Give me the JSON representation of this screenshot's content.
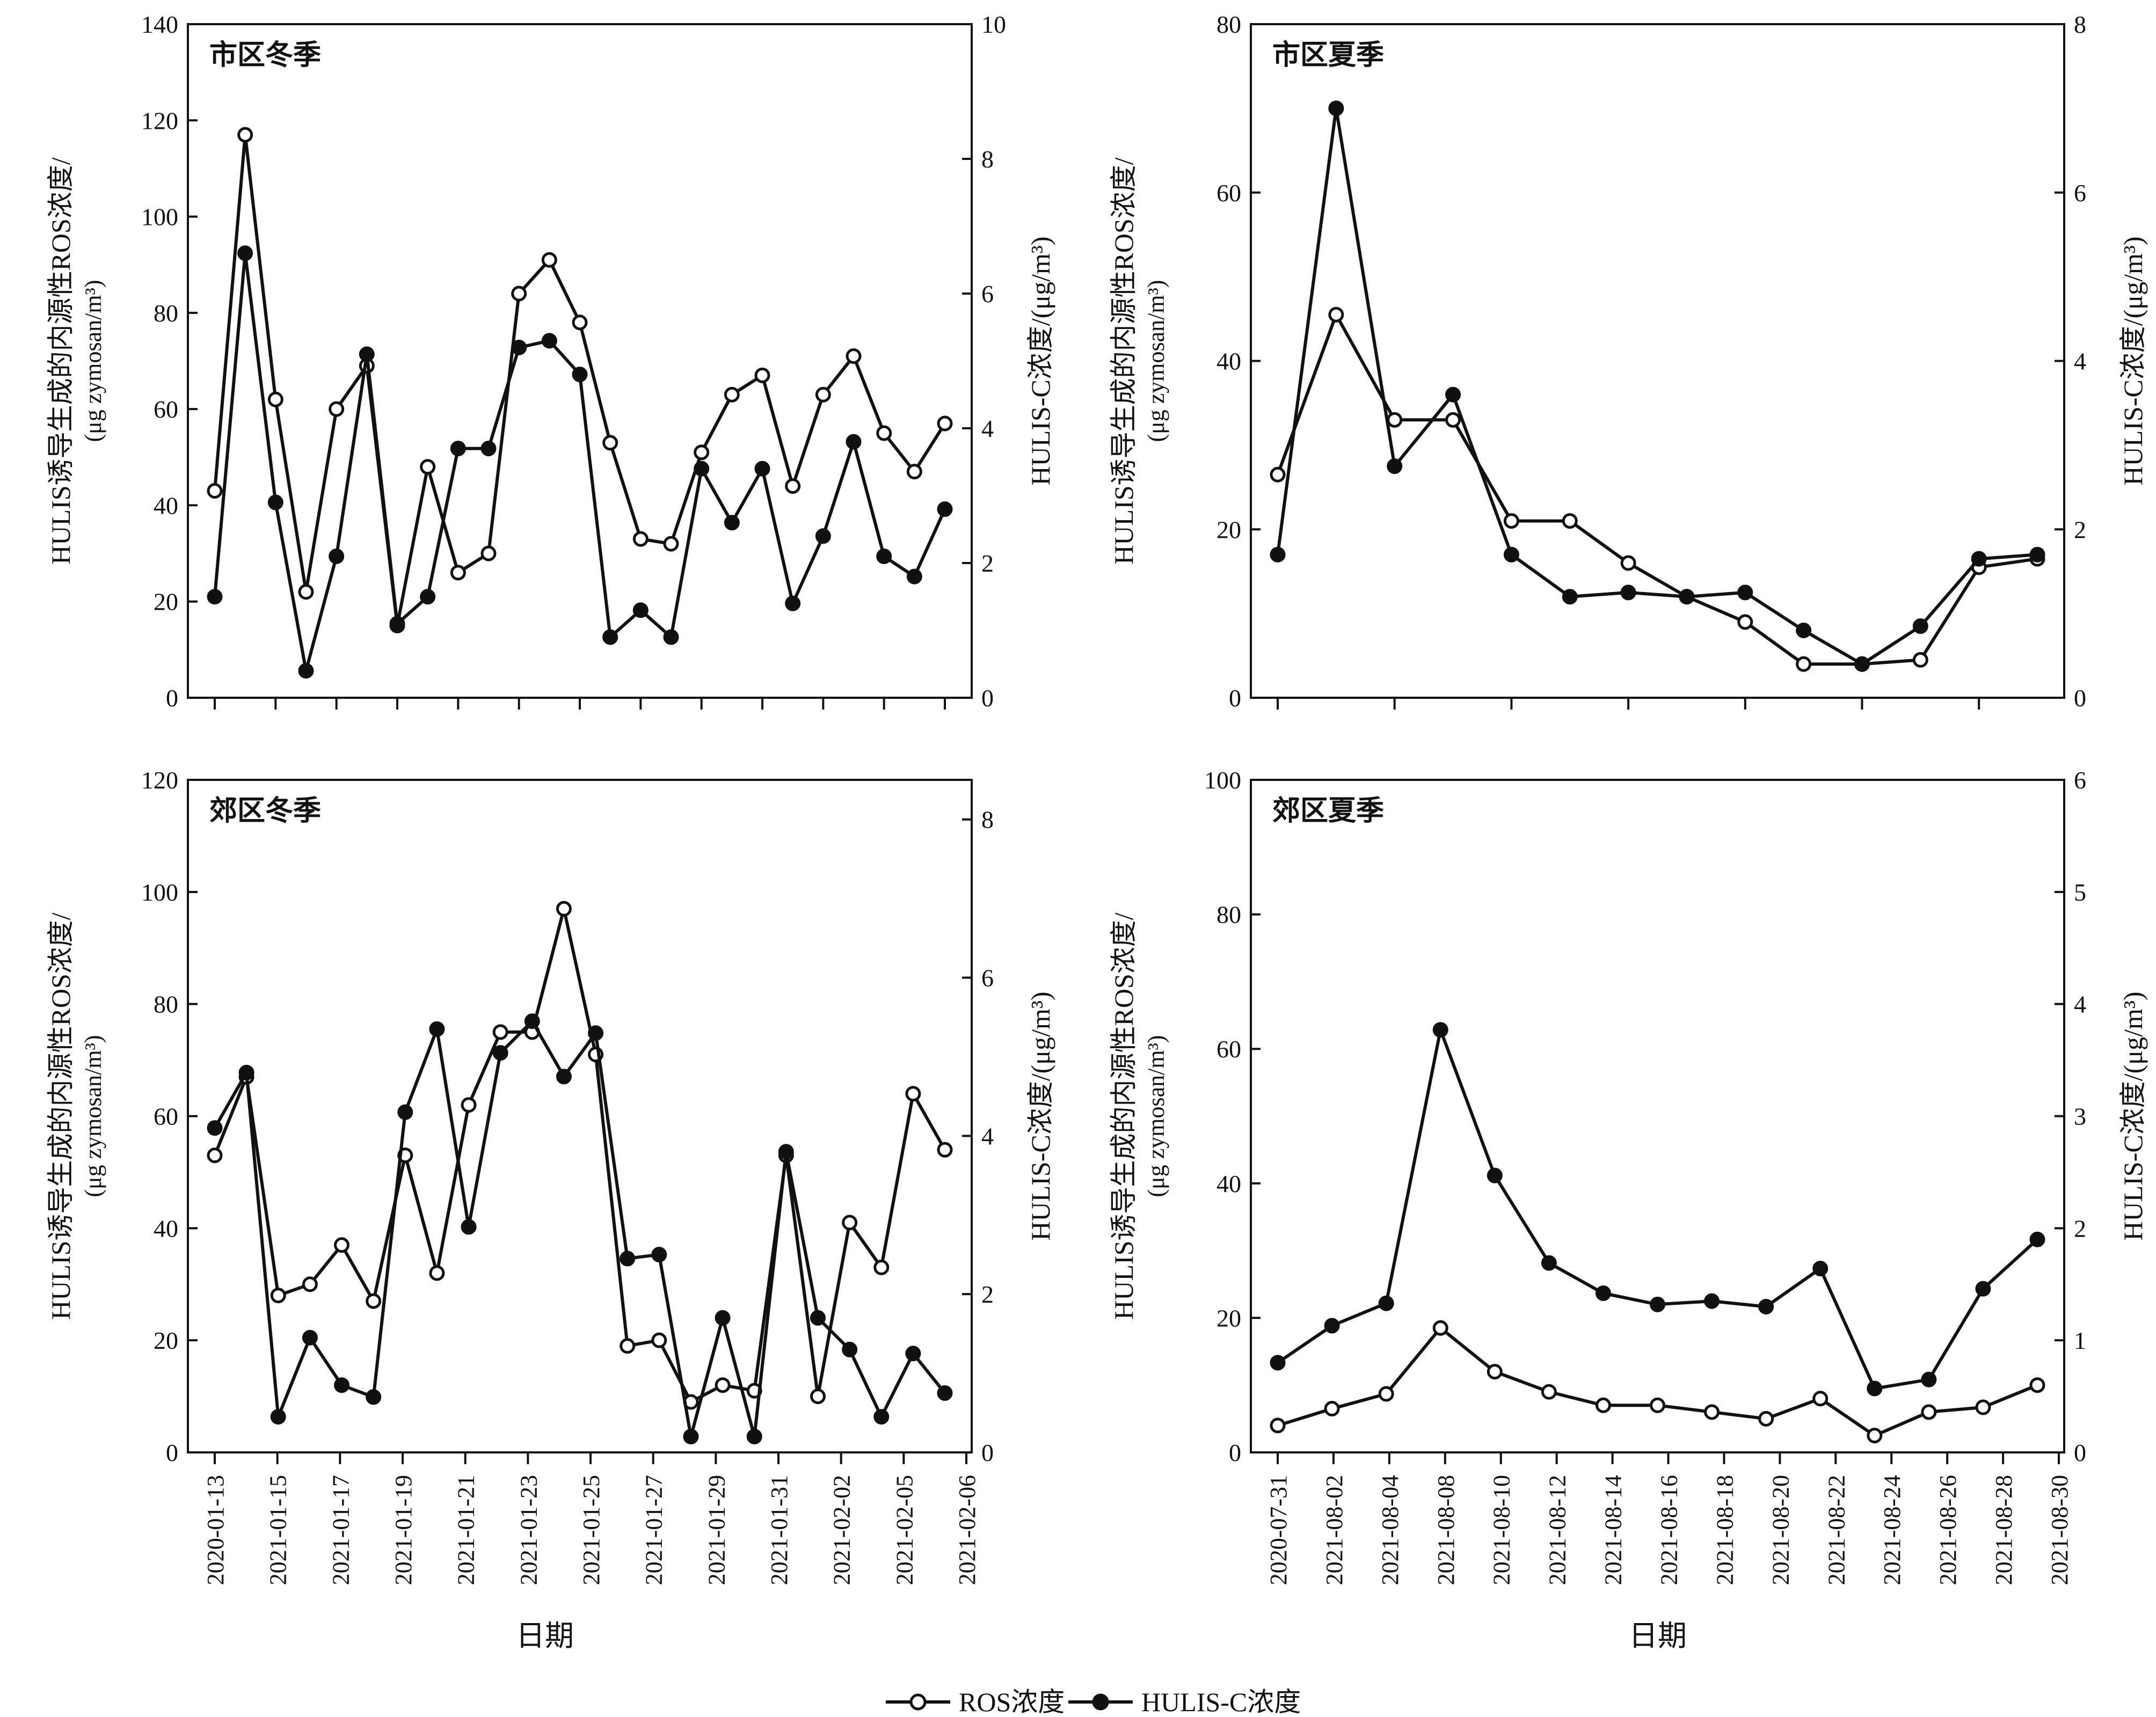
{
  "figure": {
    "x_axis_title": "日期",
    "legend": {
      "ros_label": "ROS浓度",
      "hulis_label": "HULIS-C浓度"
    },
    "colors": {
      "line": "#111111",
      "ros_marker_fill": "#ffffff",
      "hulis_marker_fill": "#111111"
    }
  },
  "chart_data": [
    {
      "type": "line",
      "title": "市区冬季",
      "ylabel_left": [
        "HULIS诱导生成的内源性ROS浓度/",
        "(μg zymosan/m³)"
      ],
      "ylabel_right": "HULIS-C浓度/(μg/m³)",
      "ylim_left": [
        0,
        140
      ],
      "yticks_left": [
        0,
        20,
        40,
        60,
        80,
        100,
        120,
        140
      ],
      "ylim_right": [
        0,
        10
      ],
      "yticks_right": [
        0,
        2,
        4,
        6,
        8,
        10
      ],
      "series": [
        {
          "name": "ROS浓度",
          "axis": "left",
          "values": [
            43,
            117,
            62,
            22,
            60,
            69,
            15,
            48,
            26,
            30,
            84,
            91,
            78,
            53,
            33,
            32,
            51,
            63,
            67,
            44,
            63,
            71,
            55,
            47,
            57
          ]
        },
        {
          "name": "HULIS-C浓度",
          "axis": "right",
          "values": [
            1.5,
            6.6,
            2.9,
            0.4,
            2.1,
            5.1,
            1.1,
            1.5,
            3.7,
            3.7,
            5.2,
            5.3,
            4.8,
            0.9,
            1.3,
            0.9,
            3.4,
            2.6,
            3.4,
            1.4,
            2.4,
            3.8,
            2.1,
            1.8,
            2.8
          ]
        }
      ]
    },
    {
      "type": "line",
      "title": "市区夏季",
      "ylabel_left": [
        "HULIS诱导生成的内源性ROS浓度/",
        "(μg zymosan/m³)"
      ],
      "ylabel_right": "HULIS-C浓度/(μg/m³)",
      "ylim_left": [
        0,
        80
      ],
      "yticks_left": [
        0,
        20,
        40,
        60,
        80
      ],
      "ylim_right": [
        0,
        8
      ],
      "yticks_right": [
        0,
        2,
        4,
        6,
        8
      ],
      "series": [
        {
          "name": "ROS浓度",
          "axis": "left",
          "values": [
            26.5,
            45.5,
            33,
            33,
            21,
            21,
            16,
            12,
            9,
            4,
            4,
            4.5,
            15.5,
            16.5
          ]
        },
        {
          "name": "HULIS-C浓度",
          "axis": "right",
          "values": [
            1.7,
            7.0,
            2.75,
            3.6,
            1.7,
            1.2,
            1.25,
            1.2,
            1.25,
            0.8,
            0.4,
            0.85,
            1.65,
            1.7
          ]
        }
      ]
    },
    {
      "type": "line",
      "title": "郊区冬季",
      "ylabel_left": [
        "HULIS诱导生成的内源性ROS浓度/",
        "(μg zymosan/m³)"
      ],
      "ylabel_right": "HULIS-C浓度/(μg/m³)",
      "x_tick_labels": [
        "2020-01-13",
        "2021-01-15",
        "2021-01-17",
        "2021-01-19",
        "2021-01-21",
        "2021-01-23",
        "2021-01-25",
        "2021-01-27",
        "2021-01-29",
        "2021-01-31",
        "2021-02-02",
        "2021-02-05",
        "2021-02-06"
      ],
      "ylim_left": [
        0,
        120
      ],
      "yticks_left": [
        0,
        20,
        40,
        60,
        80,
        100,
        120
      ],
      "ylim_right": [
        0,
        8.5
      ],
      "yticks_right": [
        0,
        2,
        4,
        6,
        8
      ],
      "series": [
        {
          "name": "ROS浓度",
          "axis": "left",
          "values": [
            53,
            67,
            28,
            30,
            37,
            27,
            53,
            32,
            62,
            75,
            75,
            97,
            71,
            19,
            20,
            9,
            12,
            11,
            53,
            10,
            41,
            33,
            64,
            54
          ]
        },
        {
          "name": "HULIS-C浓度",
          "axis": "right",
          "values": [
            4.1,
            4.8,
            0.45,
            1.45,
            0.85,
            0.7,
            4.3,
            5.35,
            2.85,
            5.05,
            5.45,
            4.75,
            5.3,
            2.45,
            2.5,
            0.2,
            1.7,
            0.2,
            3.8,
            1.7,
            1.3,
            0.45,
            1.25,
            0.75
          ]
        }
      ]
    },
    {
      "type": "line",
      "title": "郊区夏季",
      "ylabel_left": [
        "HULIS诱导生成的内源性ROS浓度/",
        "(μg zymosan/m³)"
      ],
      "ylabel_right": "HULIS-C浓度/(μg/m³)",
      "x_tick_labels": [
        "2020-07-31",
        "2021-08-02",
        "2021-08-04",
        "2021-08-08",
        "2021-08-10",
        "2021-08-12",
        "2021-08-14",
        "2021-08-16",
        "2021-08-18",
        "2021-08-20",
        "2021-08-22",
        "2021-08-24",
        "2021-08-26",
        "2021-08-28",
        "2021-08-30"
      ],
      "ylim_left": [
        0,
        100
      ],
      "yticks_left": [
        0,
        20,
        40,
        60,
        80,
        100
      ],
      "ylim_right": [
        0,
        6
      ],
      "yticks_right": [
        0,
        1,
        2,
        3,
        4,
        5,
        6
      ],
      "series": [
        {
          "name": "ROS浓度",
          "axis": "left",
          "values": [
            4,
            6.5,
            8.7,
            18.5,
            12,
            9,
            7,
            7,
            6,
            5,
            8,
            2.5,
            6,
            6.7,
            10
          ]
        },
        {
          "name": "HULIS-C浓度",
          "axis": "right",
          "values": [
            0.8,
            1.13,
            1.33,
            3.77,
            2.47,
            1.69,
            1.42,
            1.32,
            1.35,
            1.3,
            1.64,
            0.57,
            0.65,
            1.46,
            1.9
          ]
        }
      ]
    }
  ]
}
